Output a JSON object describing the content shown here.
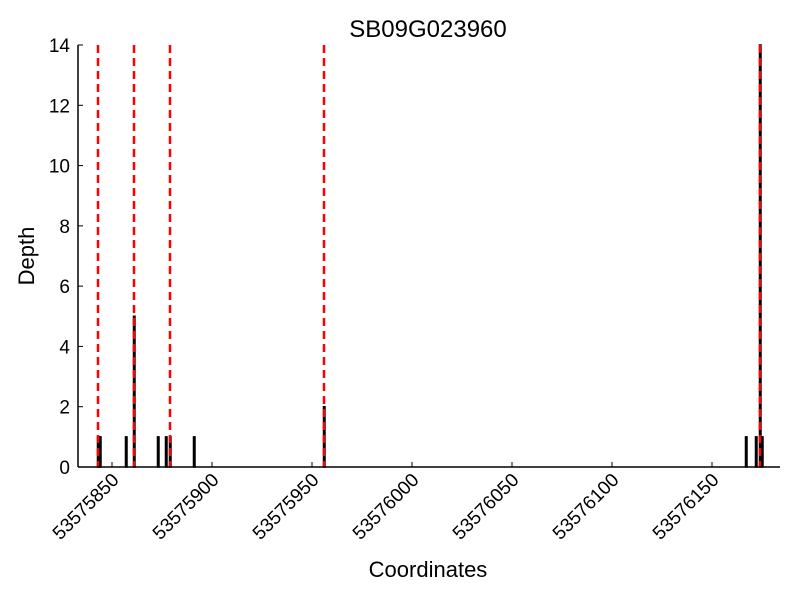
{
  "chart_data": {
    "type": "bar",
    "title": "SB09G023960",
    "xlabel": "Coordinates",
    "ylabel": "Depth",
    "xlim": [
      53575833,
      53576184
    ],
    "ylim": [
      0,
      14
    ],
    "xticks": [
      53575850,
      53575900,
      53575950,
      53576000,
      53576050,
      53576100,
      53576150
    ],
    "yticks": [
      0,
      2,
      4,
      6,
      8,
      10,
      12,
      14
    ],
    "grid": false,
    "bars": [
      {
        "x": 53575843,
        "y": 1
      },
      {
        "x": 53575844,
        "y": 1
      },
      {
        "x": 53575857,
        "y": 1
      },
      {
        "x": 53575861,
        "y": 5
      },
      {
        "x": 53575873,
        "y": 1
      },
      {
        "x": 53575877,
        "y": 1
      },
      {
        "x": 53575879,
        "y": 1
      },
      {
        "x": 53575891,
        "y": 1
      },
      {
        "x": 53575956,
        "y": 2
      },
      {
        "x": 53576167,
        "y": 1
      },
      {
        "x": 53576172,
        "y": 1
      },
      {
        "x": 53576174,
        "y": 14
      },
      {
        "x": 53576175,
        "y": 1
      }
    ],
    "vlines": [
      53575843,
      53575861,
      53575879,
      53575956,
      53576174
    ],
    "colors": {
      "bars": "#000000",
      "vlines": "#ff0000"
    }
  }
}
